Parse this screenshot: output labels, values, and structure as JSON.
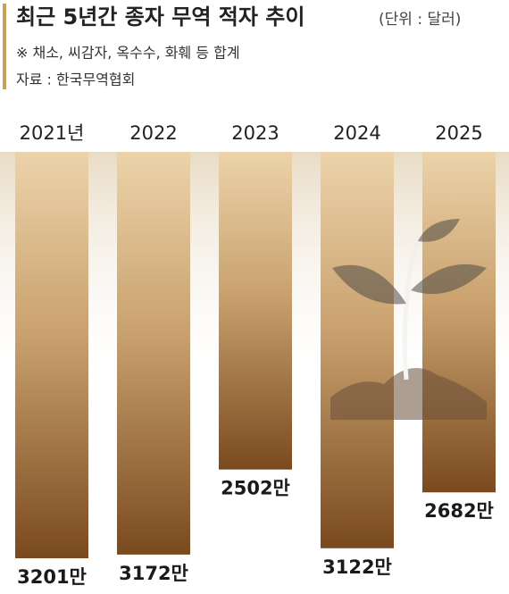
{
  "chart_data": {
    "type": "bar",
    "title": "최근 5년간 종자 무역 적자 추이",
    "unit": "(단위 : 달러)",
    "note": "※ 채소, 씨감자, 옥수수, 화훼 등 합계",
    "source": "자료 : 한국무역협회",
    "categories": [
      "2021년",
      "2022",
      "2023",
      "2024",
      "2025"
    ],
    "values": [
      3201,
      3172,
      2502,
      3122,
      2682
    ],
    "value_labels": [
      "3201만",
      "3172만",
      "2502만",
      "3122만",
      "2682만"
    ],
    "color": "#8a5a2b"
  }
}
